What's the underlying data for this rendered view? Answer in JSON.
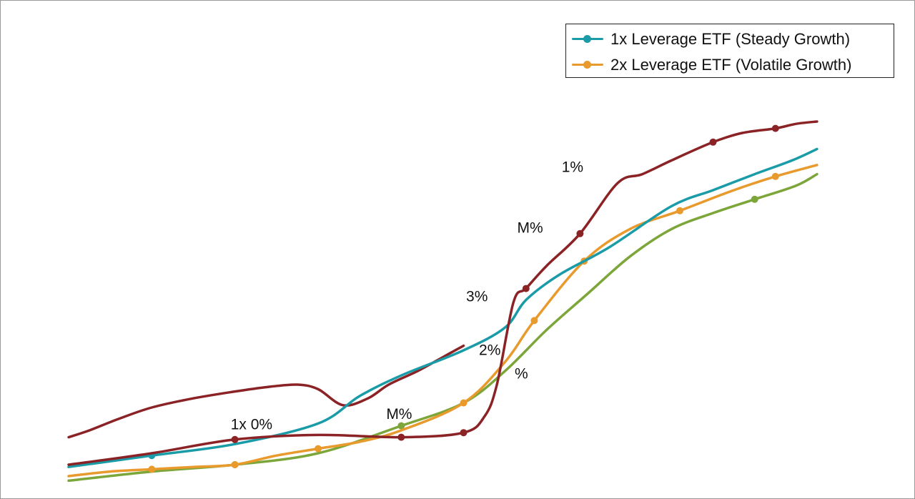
{
  "chart_data": {
    "type": "line",
    "title": "",
    "xlabel": "",
    "ylabel": "",
    "grid": false,
    "legend_position": "top-right",
    "xlim": [
      0,
      18.5
    ],
    "ylim": [
      0,
      100
    ],
    "legend": [
      {
        "label": "1x Leverage ETF (Steady Growth)",
        "color": "#1a9ba8"
      },
      {
        "label": "2x Leverage ETF (Volatile Growth)",
        "color": "#e89a2c"
      }
    ],
    "series": [
      {
        "key": "dark_red_upper",
        "color": "#8b2326",
        "x": [
          0,
          0.5,
          1.2,
          2,
          3,
          4,
          4.8,
          5.5,
          6,
          6.6,
          7.2,
          7.7,
          8.4,
          9,
          9.5
        ],
        "y": [
          13.5,
          15,
          17.5,
          20,
          22,
          23.5,
          24.5,
          25,
          24,
          20.5,
          22,
          25,
          28,
          31,
          33.5
        ],
        "markers": []
      },
      {
        "key": "dark_red_lower",
        "color": "#8b2326",
        "x": [
          0,
          2,
          4,
          6,
          8,
          9.5,
          10,
          10.3,
          10.7,
          11,
          11.5,
          12.3,
          13.2,
          13.8,
          14.5,
          15.5,
          16.2,
          17,
          17.5,
          18
        ],
        "y": [
          7.5,
          10,
          13,
          14,
          13.5,
          14.5,
          18,
          25,
          43,
          46,
          51,
          58,
          69,
          71,
          74,
          78,
          80,
          81,
          82,
          82.5
        ],
        "markers": [
          2,
          4,
          5,
          9,
          11,
          15,
          17
        ]
      },
      {
        "key": "teal",
        "color": "#1a9ba8",
        "x": [
          0,
          2,
          4,
          6,
          7,
          8,
          9.5,
          10.5,
          11,
          11.8,
          13,
          14.5,
          15.5,
          16.5,
          17.4,
          18
        ],
        "y": [
          7,
          9.5,
          12,
          16.5,
          22.5,
          27,
          32.5,
          37.5,
          43.5,
          49,
          55,
          64,
          67.5,
          71,
          74,
          76.5
        ],
        "markers": [
          1
        ]
      },
      {
        "key": "orange",
        "color": "#e89a2c",
        "x": [
          0,
          1,
          2,
          3,
          4,
          5,
          6,
          7,
          8,
          9.5,
          10.5,
          11.2,
          12.4,
          13.5,
          14.7,
          16,
          17,
          18
        ],
        "y": [
          5,
          6,
          6.5,
          7,
          7.5,
          9.5,
          11,
          12.5,
          15,
          21,
          30,
          39,
          52,
          59,
          63,
          67.5,
          70.5,
          73
        ],
        "markers": [
          2,
          4,
          6,
          9,
          11,
          12,
          14,
          16
        ]
      },
      {
        "key": "green",
        "color": "#7ca63a",
        "x": [
          0,
          2,
          4,
          6,
          8,
          9.5,
          10.5,
          11.5,
          12.5,
          13.5,
          14.5,
          15.5,
          16.5,
          17.5,
          18
        ],
        "y": [
          4,
          6,
          7.5,
          10,
          16,
          21,
          28,
          37,
          45,
          53,
          59,
          62.5,
          65.5,
          68.5,
          71
        ],
        "markers": [
          2,
          4,
          12
        ]
      }
    ],
    "annotations": [
      {
        "text": "1x 0%",
        "x": 4.4,
        "y": 15.2
      },
      {
        "text": "M%",
        "x": 7.95,
        "y": 17.5
      },
      {
        "text": "3%",
        "x": 9.82,
        "y": 43.2
      },
      {
        "text": "M%",
        "x": 11.1,
        "y": 58.2
      },
      {
        "text": "1%",
        "x": 12.12,
        "y": 71.5
      },
      {
        "text": "2%",
        "x": 10.13,
        "y": 31.5
      },
      {
        "text": "%",
        "x": 10.89,
        "y": 26.3
      }
    ]
  }
}
